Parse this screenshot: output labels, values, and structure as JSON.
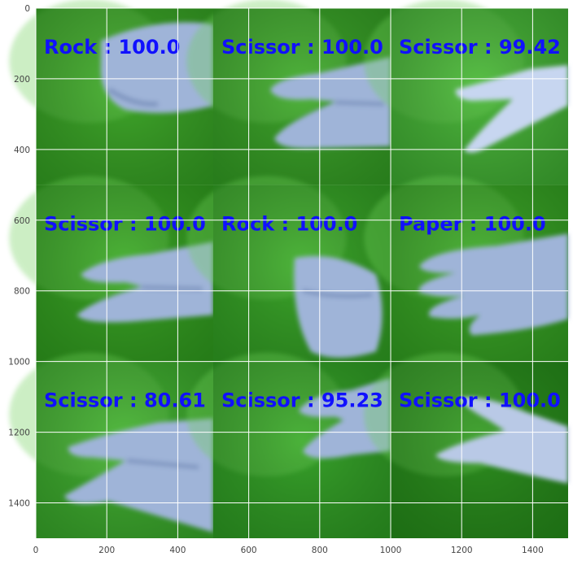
{
  "axes": {
    "x_ticks": [
      0,
      200,
      400,
      600,
      800,
      1000,
      1200,
      1400
    ],
    "y_ticks": [
      0,
      200,
      400,
      600,
      800,
      1000,
      1200,
      1400
    ],
    "x_range": [
      0,
      1500
    ],
    "y_range": [
      0,
      1500
    ],
    "y_inverted": true,
    "grid": true,
    "grid_color": "#ffffff"
  },
  "tiles": [
    {
      "label": "Rock : 100.0",
      "gesture": "rock",
      "bg": "#3fa82a"
    },
    {
      "label": "Scissor : 100.0",
      "gesture": "scissor",
      "bg": "#3ea52b"
    },
    {
      "label": "Scissor : 99.42",
      "gesture": "scissor",
      "bg": "#4cb83c"
    },
    {
      "label": "Scissor : 100.0",
      "gesture": "scissor",
      "bg": "#3aa425"
    },
    {
      "label": "Rock : 100.0",
      "gesture": "rock",
      "bg": "#3ba62a"
    },
    {
      "label": "Paper : 100.0",
      "gesture": "paper",
      "bg": "#3da728"
    },
    {
      "label": "Scissor : 80.61",
      "gesture": "scissor",
      "bg": "#44b133"
    },
    {
      "label": "Scissor : 95.23",
      "gesture": "scissor",
      "bg": "#37a32a"
    },
    {
      "label": "Scissor : 100.0",
      "gesture": "scissor",
      "bg": "#2d8f1f"
    }
  ],
  "colors": {
    "label_text": "#1010ff",
    "hand": "#9fb4d8",
    "hand_shadow": "#7f95bf",
    "tick_text": "#444444"
  }
}
